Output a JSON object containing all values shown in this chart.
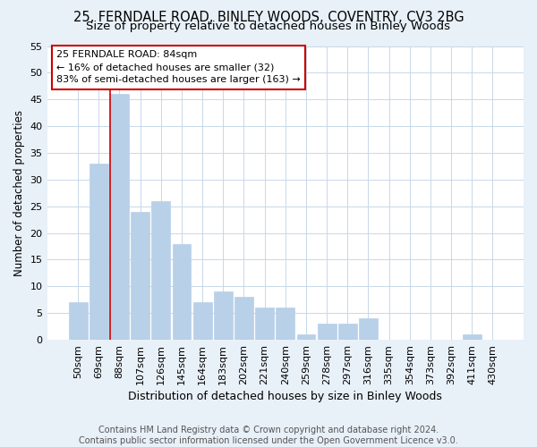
{
  "title1": "25, FERNDALE ROAD, BINLEY WOODS, COVENTRY, CV3 2BG",
  "title2": "Size of property relative to detached houses in Binley Woods",
  "xlabel": "Distribution of detached houses by size in Binley Woods",
  "ylabel": "Number of detached properties",
  "categories": [
    "50sqm",
    "69sqm",
    "88sqm",
    "107sqm",
    "126sqm",
    "145sqm",
    "164sqm",
    "183sqm",
    "202sqm",
    "221sqm",
    "240sqm",
    "259sqm",
    "278sqm",
    "297sqm",
    "316sqm",
    "335sqm",
    "354sqm",
    "373sqm",
    "392sqm",
    "411sqm",
    "430sqm"
  ],
  "values": [
    7,
    33,
    46,
    24,
    26,
    18,
    7,
    9,
    8,
    6,
    6,
    1,
    3,
    3,
    4,
    0,
    0,
    0,
    0,
    1,
    0
  ],
  "bar_color": "#b8d0e8",
  "bar_edge_color": "#b8d0e8",
  "vline_x_index": 2,
  "annotation_text": "25 FERNDALE ROAD: 84sqm\n← 16% of detached houses are smaller (32)\n83% of semi-detached houses are larger (163) →",
  "annotation_box_color": "#ffffff",
  "annotation_box_edge_color": "#cc0000",
  "vline_color": "#cc0000",
  "ylim": [
    0,
    55
  ],
  "yticks": [
    0,
    5,
    10,
    15,
    20,
    25,
    30,
    35,
    40,
    45,
    50,
    55
  ],
  "grid_color": "#c8d8e8",
  "fig_bg_color": "#e8f0f8",
  "plot_bg_color": "#ffffff",
  "footer_text": "Contains HM Land Registry data © Crown copyright and database right 2024.\nContains public sector information licensed under the Open Government Licence v3.0.",
  "title1_fontsize": 10.5,
  "title2_fontsize": 9.5,
  "xlabel_fontsize": 9,
  "ylabel_fontsize": 8.5,
  "tick_fontsize": 8,
  "annotation_fontsize": 8,
  "footer_fontsize": 7
}
